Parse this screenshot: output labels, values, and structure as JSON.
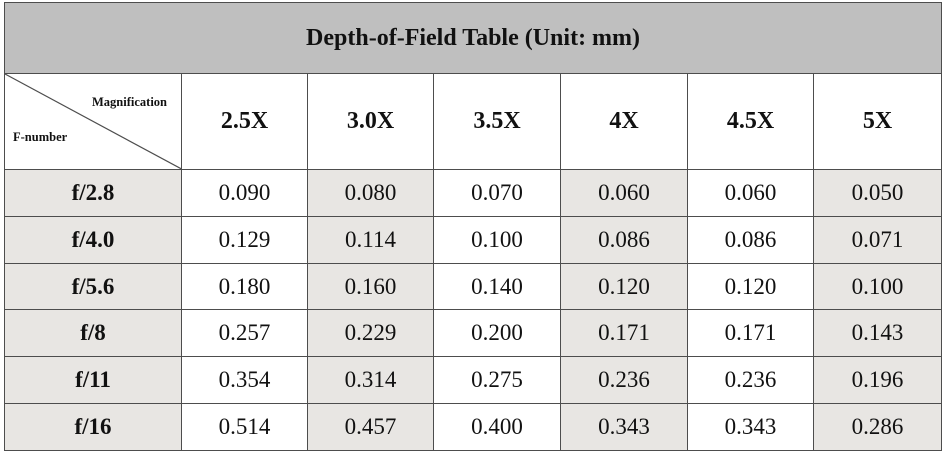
{
  "title": "Depth-of-Field Table (Unit: mm)",
  "corner": {
    "top_label": "Magnification",
    "bottom_label": "F-number"
  },
  "magnifications": [
    "2.5X",
    "3.0X",
    "3.5X",
    "4X",
    "4.5X",
    "5X"
  ],
  "rows": [
    {
      "f_number": "f/2.8",
      "values": [
        "0.090",
        "0.080",
        "0.070",
        "0.060",
        "0.060",
        "0.050"
      ]
    },
    {
      "f_number": "f/4.0",
      "values": [
        "0.129",
        "0.114",
        "0.100",
        "0.086",
        "0.086",
        "0.071"
      ]
    },
    {
      "f_number": "f/5.6",
      "values": [
        "0.180",
        "0.160",
        "0.140",
        "0.120",
        "0.120",
        "0.100"
      ]
    },
    {
      "f_number": "f/8",
      "values": [
        "0.257",
        "0.229",
        "0.200",
        "0.171",
        "0.171",
        "0.143"
      ]
    },
    {
      "f_number": "f/11",
      "values": [
        "0.354",
        "0.314",
        "0.275",
        "0.236",
        "0.236",
        "0.196"
      ]
    },
    {
      "f_number": "f/16",
      "values": [
        "0.514",
        "0.457",
        "0.400",
        "0.343",
        "0.343",
        "0.286"
      ]
    }
  ],
  "colors": {
    "title_background": "#bfbfbf",
    "shaded_cell": "#e8e6e3",
    "border": "#4d4d4d"
  }
}
